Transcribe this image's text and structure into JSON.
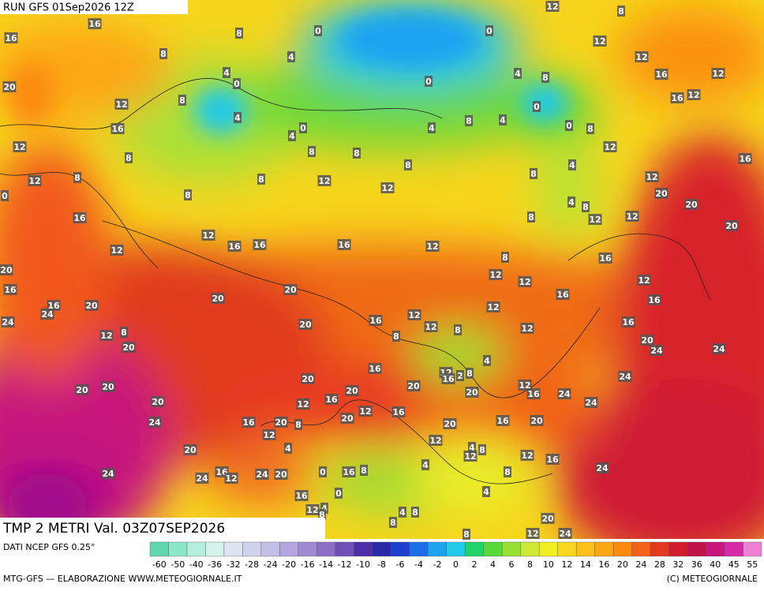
{
  "header": {
    "run": "RUN GFS 01Sep2026 12Z",
    "field": "TMP 2 METRI Val. 03Z07SEP2026",
    "source": "DATI NCEP GFS 0.25°"
  },
  "footer": {
    "left": "MTG-GFS — ELABORAZIONE WWW.METEOGIORNALE.IT",
    "right": "(C) METEOGIORNALE"
  },
  "legend": {
    "labels": [
      "-60",
      "-50",
      "-40",
      "-36",
      "-32",
      "-28",
      "-24",
      "-20",
      "-16",
      "-14",
      "-12",
      "-10",
      "-8",
      "-6",
      "-4",
      "-2",
      "0",
      "2",
      "4",
      "6",
      "8",
      "10",
      "12",
      "14",
      "16",
      "20",
      "24",
      "28",
      "32",
      "36",
      "40",
      "45",
      "55"
    ],
    "colors": [
      "#5fd8b0",
      "#8ee6c8",
      "#b5eedc",
      "#d4f2ec",
      "#dfe4f2",
      "#cfd4ee",
      "#c3c0e8",
      "#b3a6dc",
      "#a08ad0",
      "#8c6fc4",
      "#6f4fb6",
      "#4d2ea8",
      "#2b2aa6",
      "#1c3fcf",
      "#1c6ee8",
      "#1ea3f0",
      "#22c9e8",
      "#22d36a",
      "#5ad83a",
      "#98e033",
      "#cde834",
      "#f0ef22",
      "#f8d81c",
      "#fcc016",
      "#fca612",
      "#fb8a10",
      "#f4621a",
      "#e63a1e",
      "#d01e2a",
      "#c01448",
      "#c8167c",
      "#d82aa8",
      "#ee80d8"
    ]
  },
  "map": {
    "labels": [
      16,
      8,
      0,
      0,
      12,
      8,
      16,
      8,
      4,
      12,
      12,
      4,
      0,
      0,
      4,
      8,
      16,
      12,
      20,
      12,
      8,
      0,
      16,
      12,
      4,
      0,
      4,
      8,
      4,
      0,
      8,
      16,
      4,
      12,
      8,
      8,
      8,
      12,
      16,
      12,
      8,
      8,
      12,
      8,
      8,
      4,
      12,
      8,
      12,
      20,
      20,
      0,
      4,
      8,
      16,
      8,
      12,
      12,
      20,
      12,
      16,
      16,
      16,
      12,
      12,
      8,
      16,
      20,
      12,
      12,
      12,
      16,
      20,
      20,
      16,
      16,
      16,
      20,
      12,
      24,
      24,
      20,
      16,
      12,
      12,
      8,
      12,
      16,
      8,
      12,
      20,
      8,
      20,
      24,
      24,
      4,
      16,
      12,
      16,
      2,
      8,
      24,
      20,
      20,
      20,
      20,
      20,
      20,
      12,
      16,
      24,
      20,
      12,
      16,
      24,
      12,
      16,
      20,
      20,
      16,
      20,
      24,
      16,
      20,
      8,
      12,
      12,
      20,
      4,
      4,
      8,
      12,
      12,
      16,
      4,
      24,
      24,
      16,
      12,
      24,
      20,
      0,
      16,
      8,
      8,
      24,
      0,
      16,
      4,
      12,
      4,
      8,
      4,
      8,
      8,
      20,
      12,
      24,
      8
    ]
  }
}
